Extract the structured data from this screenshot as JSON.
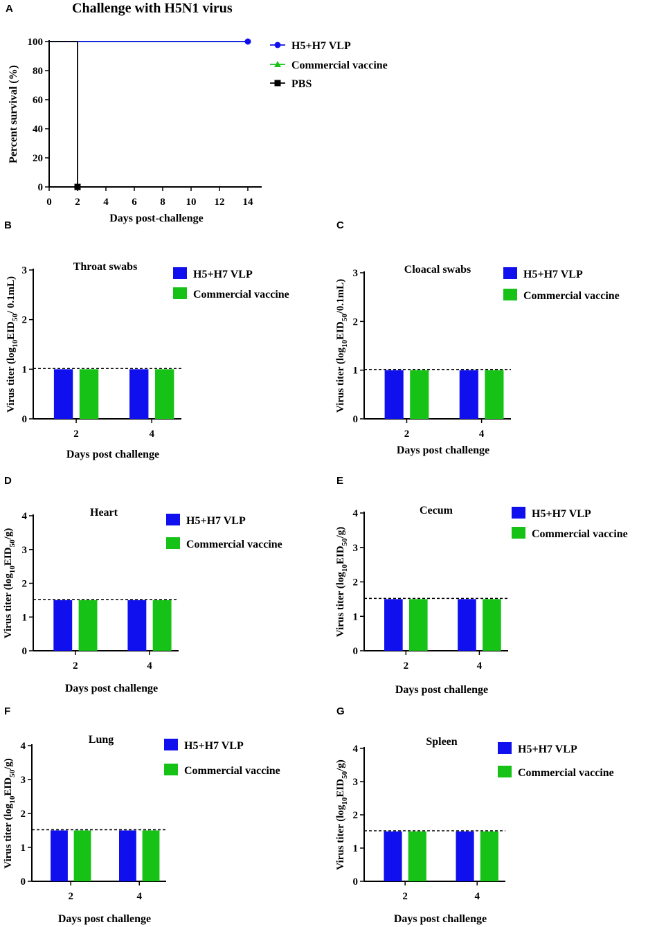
{
  "colors": {
    "vlp": "#1010ee",
    "commercial": "#15c215",
    "pbs": "#000000",
    "axis": "#000000"
  },
  "chart_data": [
    {
      "id": "A",
      "panel_label": "A",
      "type": "line",
      "title": "Challenge with H5N1 virus",
      "xlabel": "Days post-challenge",
      "ylabel": "Percent survival (%)",
      "xlim": [
        0,
        14
      ],
      "ylim": [
        0,
        100
      ],
      "xticks": [
        "0",
        "2",
        "4",
        "6",
        "8",
        "10",
        "12",
        "14"
      ],
      "yticks": [
        "0",
        "20",
        "40",
        "60",
        "80",
        "100"
      ],
      "series": [
        {
          "name": "H5+H7 VLP",
          "marker": "circle",
          "color": "#1010ee",
          "points": [
            [
              0,
              100
            ],
            [
              14,
              100
            ]
          ],
          "markers_at": [
            [
              14,
              100
            ]
          ]
        },
        {
          "name": "Commercial vaccine",
          "marker": "triangle",
          "color": "#15c215",
          "points": [
            [
              0,
              100
            ],
            [
              14,
              100
            ]
          ],
          "markers_at": []
        },
        {
          "name": "PBS",
          "marker": "square",
          "color": "#000000",
          "points": [
            [
              0,
              100
            ],
            [
              2,
              100
            ],
            [
              2,
              0
            ]
          ],
          "markers_at": [
            [
              2,
              0
            ]
          ]
        }
      ]
    },
    {
      "id": "B",
      "panel_label": "B",
      "type": "bar",
      "title": "Throat swabs",
      "xlabel": "Days post challenge",
      "ylabel_main": "Virus titer (log",
      "ylabel_sub1": "10",
      "ylabel_mid": "EID",
      "ylabel_sub2": "50",
      "ylabel_end": "/ 0.1mL)",
      "ylim": [
        0,
        3
      ],
      "yticks": [
        "0",
        "1",
        "2",
        "3"
      ],
      "categories": [
        "2",
        "4"
      ],
      "detection_limit": 1.0,
      "series": [
        {
          "name": "H5+H7 VLP",
          "values": [
            1.0,
            1.0
          ]
        },
        {
          "name": "Commercial vaccine",
          "values": [
            1.0,
            1.0
          ]
        }
      ]
    },
    {
      "id": "C",
      "panel_label": "C",
      "type": "bar",
      "title": "Cloacal swabs",
      "xlabel": "Days post challenge",
      "ylabel_main": "Virus titer (log",
      "ylabel_sub1": "10",
      "ylabel_mid": "EID",
      "ylabel_sub2": "50",
      "ylabel_end": "/0.1mL)",
      "ylim": [
        0,
        3
      ],
      "yticks": [
        "0",
        "1",
        "2",
        "3"
      ],
      "categories": [
        "2",
        "4"
      ],
      "detection_limit": 1.0,
      "series": [
        {
          "name": "H5+H7 VLP",
          "values": [
            1.0,
            1.0
          ]
        },
        {
          "name": "Commercial vaccine",
          "values": [
            1.0,
            1.0
          ]
        }
      ]
    },
    {
      "id": "D",
      "panel_label": "D",
      "type": "bar",
      "title": "Heart",
      "xlabel": "Days post challenge",
      "ylabel_main": "Virus titer (log",
      "ylabel_sub1": "10",
      "ylabel_mid": "EID",
      "ylabel_sub2": "50",
      "ylabel_end": "/g)",
      "ylim": [
        0,
        4
      ],
      "yticks": [
        "0",
        "1",
        "2",
        "3",
        "4"
      ],
      "categories": [
        "2",
        "4"
      ],
      "detection_limit": 1.5,
      "series": [
        {
          "name": "H5+H7 VLP",
          "values": [
            1.5,
            1.5
          ]
        },
        {
          "name": "Commercial vaccine",
          "values": [
            1.5,
            1.5
          ]
        }
      ]
    },
    {
      "id": "E",
      "panel_label": "E",
      "type": "bar",
      "title": "Cecum",
      "xlabel": "Days post challenge",
      "ylabel_main": "Virus titer (log",
      "ylabel_sub1": "10",
      "ylabel_mid": "EID",
      "ylabel_sub2": "50",
      "ylabel_end": "/g)",
      "ylim": [
        0,
        4
      ],
      "yticks": [
        "0",
        "1",
        "2",
        "3",
        "4"
      ],
      "categories": [
        "2",
        "4"
      ],
      "detection_limit": 1.5,
      "series": [
        {
          "name": "H5+H7 VLP",
          "values": [
            1.5,
            1.5
          ]
        },
        {
          "name": "Commercial vaccine",
          "values": [
            1.5,
            1.5
          ]
        }
      ]
    },
    {
      "id": "F",
      "panel_label": "F",
      "type": "bar",
      "title": "Lung",
      "xlabel": "Days post challenge",
      "ylabel_main": "Virus titer (log",
      "ylabel_sub1": "10",
      "ylabel_mid": "EID",
      "ylabel_sub2": "50",
      "ylabel_end": "/g)",
      "ylim": [
        0,
        4
      ],
      "yticks": [
        "0",
        "1",
        "2",
        "3",
        "4"
      ],
      "categories": [
        "2",
        "4"
      ],
      "detection_limit": 1.5,
      "series": [
        {
          "name": "H5+H7 VLP",
          "values": [
            1.5,
            1.5
          ]
        },
        {
          "name": "Commercial vaccine",
          "values": [
            1.5,
            1.5
          ]
        }
      ]
    },
    {
      "id": "G",
      "panel_label": "G",
      "type": "bar",
      "title": "Spleen",
      "xlabel": "Days post challenge",
      "ylabel_main": "Virus titer (log",
      "ylabel_sub1": "10",
      "ylabel_mid": "EID",
      "ylabel_sub2": "50",
      "ylabel_end": "/g)",
      "ylim": [
        0,
        4
      ],
      "yticks": [
        "0",
        "1",
        "2",
        "3",
        "4"
      ],
      "categories": [
        "2",
        "4"
      ],
      "detection_limit": 1.5,
      "series": [
        {
          "name": "H5+H7 VLP",
          "values": [
            1.5,
            1.5
          ]
        },
        {
          "name": "Commercial vaccine",
          "values": [
            1.5,
            1.5
          ]
        }
      ]
    }
  ]
}
